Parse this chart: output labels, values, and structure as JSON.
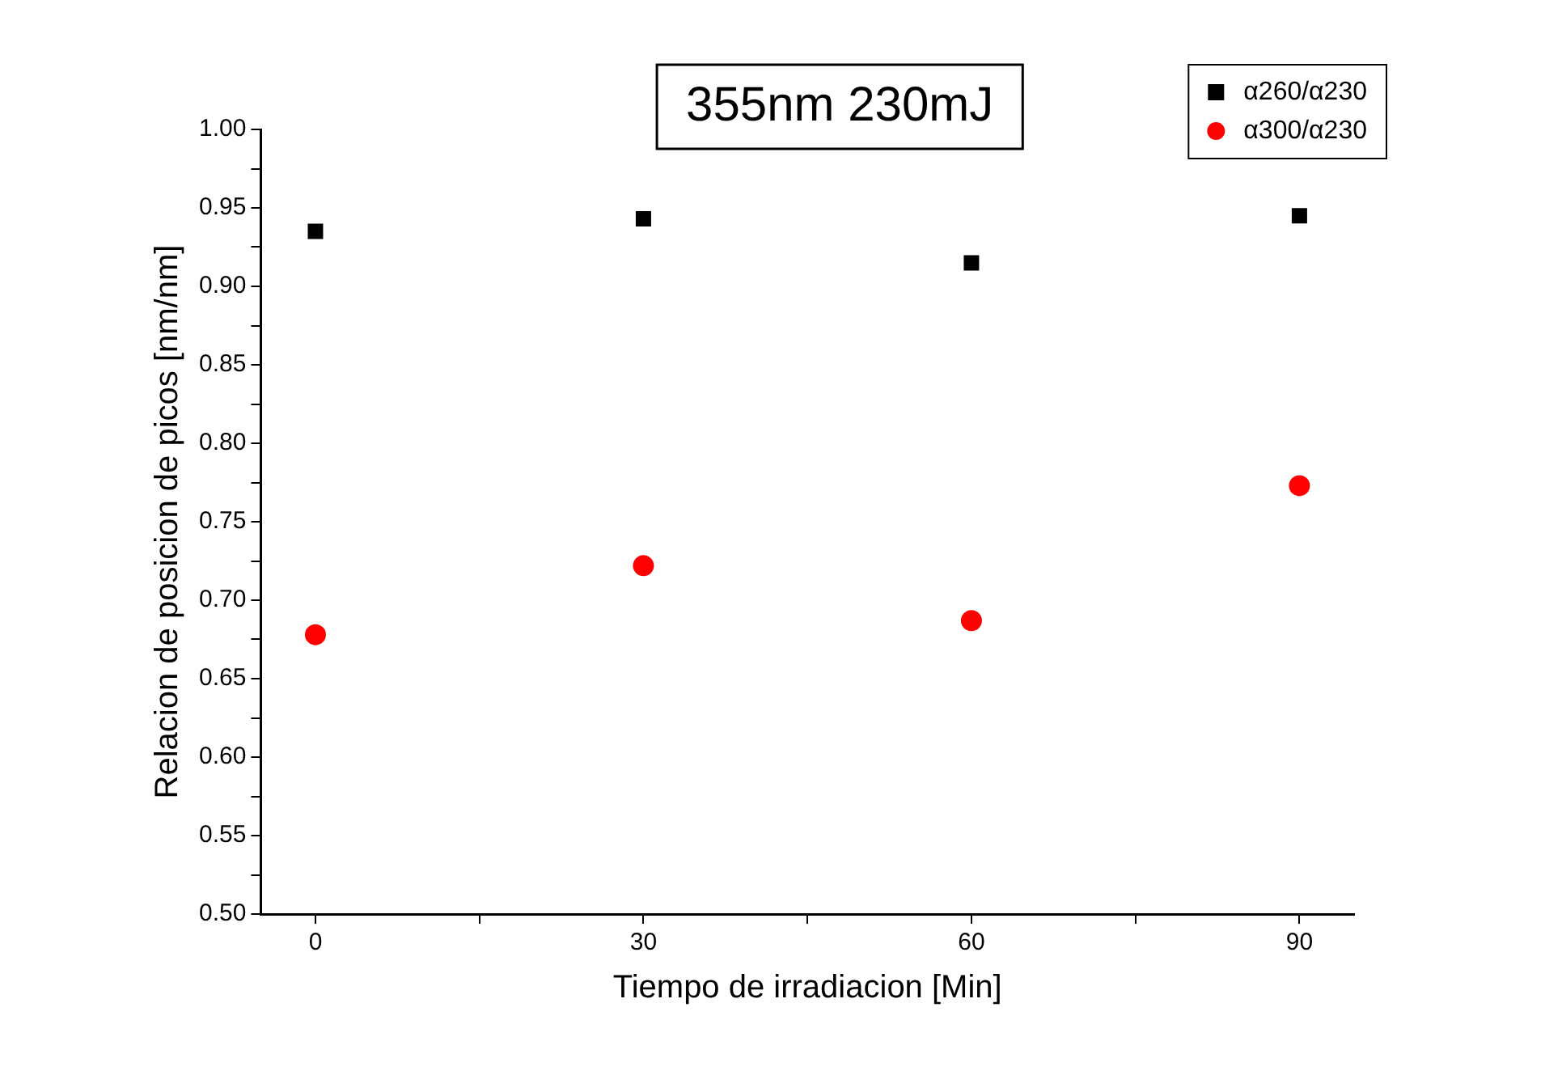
{
  "chart_data": {
    "type": "scatter",
    "title": "355nm 230mJ",
    "xlabel": "Tiempo de irradiacion [Min]",
    "ylabel": "Relacion de posicion de picos [nm/nm]",
    "x": [
      0,
      30,
      60,
      90
    ],
    "series": [
      {
        "name": "α260/α230",
        "color": "#000000",
        "marker": "square",
        "values": [
          0.935,
          0.943,
          0.915,
          0.945
        ]
      },
      {
        "name": "α300/α230",
        "color": "#ff0000",
        "marker": "circle",
        "values": [
          0.678,
          0.722,
          0.687,
          0.773
        ]
      }
    ],
    "xlim": [
      -5,
      95
    ],
    "xticks": [
      0,
      {
        "value": 15,
        "label": null
      },
      30,
      {
        "value": 45,
        "label": null
      },
      60,
      {
        "value": 75,
        "label": null
      },
      90
    ],
    "ylim": [
      0.5,
      1.0
    ],
    "yticks": [
      {
        "value": 0.5,
        "label": "0.50"
      },
      {
        "value": 0.525,
        "label": null
      },
      {
        "value": 0.55,
        "label": "0.55"
      },
      {
        "value": 0.575,
        "label": null
      },
      {
        "value": 0.6,
        "label": "0.60"
      },
      {
        "value": 0.625,
        "label": null
      },
      {
        "value": 0.65,
        "label": "0.65"
      },
      {
        "value": 0.675,
        "label": null
      },
      {
        "value": 0.7,
        "label": "0.70"
      },
      {
        "value": 0.725,
        "label": null
      },
      {
        "value": 0.75,
        "label": "0.75"
      },
      {
        "value": 0.775,
        "label": null
      },
      {
        "value": 0.8,
        "label": "0.80"
      },
      {
        "value": 0.825,
        "label": null
      },
      {
        "value": 0.85,
        "label": "0.85"
      },
      {
        "value": 0.875,
        "label": null
      },
      {
        "value": 0.9,
        "label": "0.90"
      },
      {
        "value": 0.925,
        "label": null
      },
      {
        "value": 0.95,
        "label": "0.95"
      },
      {
        "value": 0.975,
        "label": null
      },
      {
        "value": 1.0,
        "label": "1.00"
      }
    ],
    "grid": false,
    "legend": "top right"
  }
}
